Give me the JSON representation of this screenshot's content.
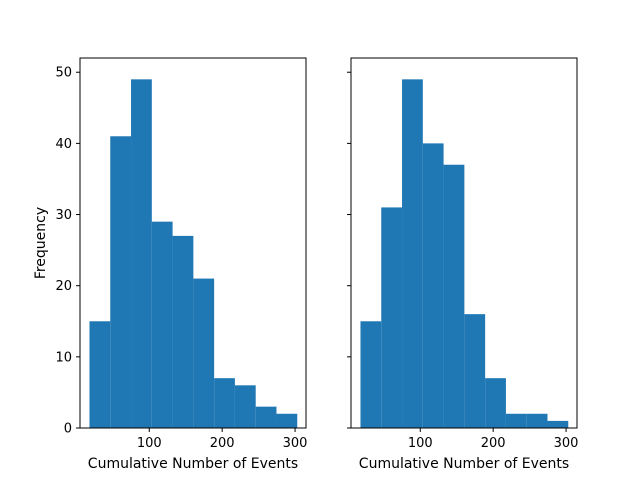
{
  "chart_data": [
    {
      "type": "bar",
      "kind": "histogram",
      "xlabel": "Cumulative Number of Events",
      "ylabel": "Frequency",
      "xlim": [
        5,
        315
      ],
      "ylim": [
        0,
        52
      ],
      "xticks": [
        100,
        200,
        300
      ],
      "yticks": [
        0,
        10,
        20,
        30,
        40,
        50
      ],
      "show_ytick_labels": true,
      "bin_edges": [
        18,
        46.5,
        75,
        103.5,
        132,
        160.5,
        189,
        217.5,
        246,
        274.5,
        303
      ],
      "values": [
        15,
        41,
        49,
        29,
        27,
        21,
        7,
        6,
        3,
        2
      ],
      "color": "#1f77b4",
      "grid": false
    },
    {
      "type": "bar",
      "kind": "histogram",
      "xlabel": "Cumulative Number of Events",
      "ylabel": "",
      "xlim": [
        5,
        315
      ],
      "ylim": [
        0,
        52
      ],
      "xticks": [
        100,
        200,
        300
      ],
      "yticks": [
        0,
        10,
        20,
        30,
        40,
        50
      ],
      "show_ytick_labels": false,
      "bin_edges": [
        18,
        46.5,
        75,
        103.5,
        132,
        160.5,
        189,
        217.5,
        246,
        274.5,
        303
      ],
      "values": [
        15,
        31,
        49,
        40,
        37,
        16,
        7,
        2,
        2,
        1
      ],
      "color": "#1f77b4",
      "grid": false
    }
  ]
}
